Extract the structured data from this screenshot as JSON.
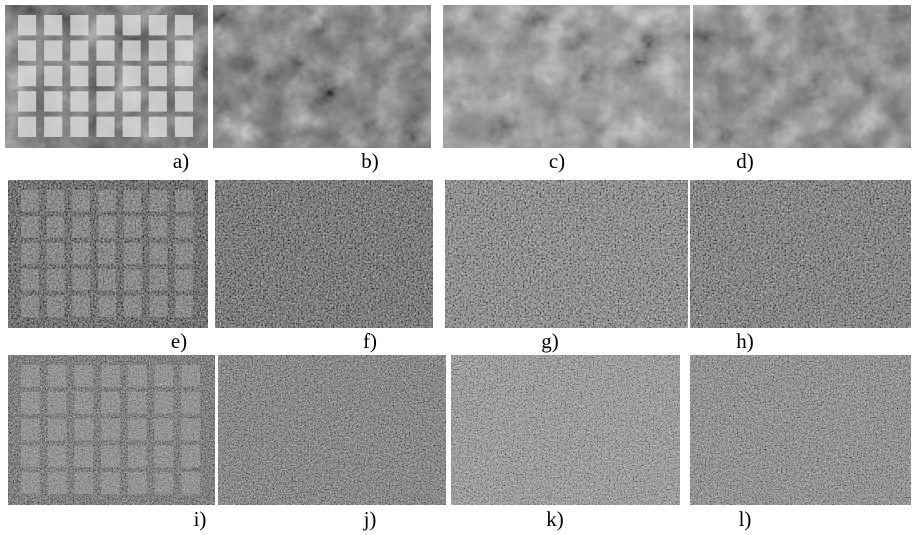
{
  "figure": {
    "panels": [
      {
        "label": "a)"
      },
      {
        "label": "b)"
      },
      {
        "label": "c)"
      },
      {
        "label": "d)"
      },
      {
        "label": "e)"
      },
      {
        "label": "f)"
      },
      {
        "label": "g)"
      },
      {
        "label": "h)"
      },
      {
        "label": "i)"
      },
      {
        "label": "j)"
      },
      {
        "label": "k)"
      },
      {
        "label": "l)"
      }
    ]
  }
}
